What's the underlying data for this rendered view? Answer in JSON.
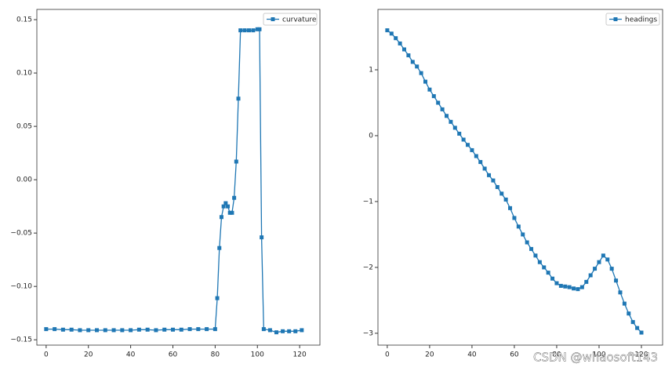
{
  "chart_data": [
    {
      "type": "line",
      "legend": "upper right",
      "x": [
        0,
        4,
        8,
        12,
        16,
        20,
        24,
        28,
        32,
        36,
        40,
        44,
        48,
        52,
        56,
        60,
        64,
        68,
        72,
        76,
        80,
        81,
        82,
        83,
        84,
        85,
        86,
        87,
        88,
        89,
        90,
        91,
        92,
        94,
        96,
        98,
        100,
        101,
        102,
        103,
        106,
        109,
        112,
        115,
        118,
        121
      ],
      "series": [
        {
          "name": "curvature",
          "color": "#1f77b4",
          "values": [
            -0.14,
            -0.14,
            -0.1405,
            -0.1405,
            -0.141,
            -0.141,
            -0.141,
            -0.141,
            -0.141,
            -0.141,
            -0.141,
            -0.1405,
            -0.1405,
            -0.141,
            -0.1405,
            -0.1405,
            -0.1405,
            -0.14,
            -0.14,
            -0.14,
            -0.14,
            -0.111,
            -0.064,
            -0.035,
            -0.025,
            -0.022,
            -0.025,
            -0.031,
            -0.031,
            -0.017,
            0.017,
            0.076,
            0.14,
            0.14,
            0.14,
            0.14,
            0.141,
            0.141,
            -0.054,
            -0.14,
            -0.141,
            -0.143,
            -0.142,
            -0.142,
            -0.142,
            -0.141
          ]
        }
      ],
      "xlim": [
        -4.4,
        129.6
      ],
      "xticks": [
        0,
        20,
        40,
        60,
        80,
        100,
        120
      ],
      "ylim": [
        -0.155,
        0.1596
      ],
      "yticks": [
        {
          "value": -0.15,
          "label": "−0.15"
        },
        {
          "value": -0.1,
          "label": "−0.10"
        },
        {
          "value": -0.05,
          "label": "−0.05"
        },
        {
          "value": 0,
          "label": "0.00"
        },
        {
          "value": 0.05,
          "label": "0.05"
        },
        {
          "value": 0.1,
          "label": "0.10"
        },
        {
          "value": 0.15,
          "label": "0.15"
        }
      ]
    },
    {
      "type": "line",
      "legend": "upper right",
      "x": [
        0,
        2,
        4,
        6,
        8,
        10,
        12,
        14,
        16,
        18,
        20,
        22,
        24,
        26,
        28,
        30,
        32,
        34,
        36,
        38,
        40,
        42,
        44,
        46,
        48,
        50,
        52,
        54,
        56,
        58,
        60,
        62,
        64,
        66,
        68,
        70,
        72,
        74,
        76,
        78,
        80,
        82,
        84,
        86,
        88,
        90,
        92,
        94,
        96,
        98,
        100,
        102,
        104,
        106,
        108,
        110,
        112,
        114,
        116,
        118,
        120
      ],
      "series": [
        {
          "name": "headings",
          "color": "#1f77b4",
          "values": [
            1.6,
            1.55,
            1.48,
            1.4,
            1.31,
            1.22,
            1.12,
            1.05,
            0.95,
            0.82,
            0.7,
            0.6,
            0.5,
            0.4,
            0.3,
            0.21,
            0.12,
            0.03,
            -0.06,
            -0.14,
            -0.22,
            -0.31,
            -0.4,
            -0.5,
            -0.6,
            -0.68,
            -0.78,
            -0.88,
            -0.97,
            -1.1,
            -1.25,
            -1.38,
            -1.5,
            -1.62,
            -1.72,
            -1.82,
            -1.92,
            -2.0,
            -2.08,
            -2.17,
            -2.24,
            -2.28,
            -2.29,
            -2.3,
            -2.32,
            -2.33,
            -2.3,
            -2.22,
            -2.12,
            -2.02,
            -1.92,
            -1.82,
            -1.88,
            -2.02,
            -2.2,
            -2.38,
            -2.55,
            -2.7,
            -2.83,
            -2.92,
            -2.99
          ]
        }
      ],
      "xlim": [
        -4.4,
        130
      ],
      "xticks": [
        0,
        20,
        40,
        60,
        80,
        100,
        120
      ],
      "ylim": [
        -3.18,
        1.917
      ],
      "yticks": [
        {
          "value": -3,
          "label": "−3"
        },
        {
          "value": -2,
          "label": "−2"
        },
        {
          "value": -1,
          "label": "−1"
        },
        {
          "value": 0,
          "label": "0"
        },
        {
          "value": 1,
          "label": "1"
        }
      ]
    }
  ],
  "watermark": "CSDN @whaosoft143"
}
